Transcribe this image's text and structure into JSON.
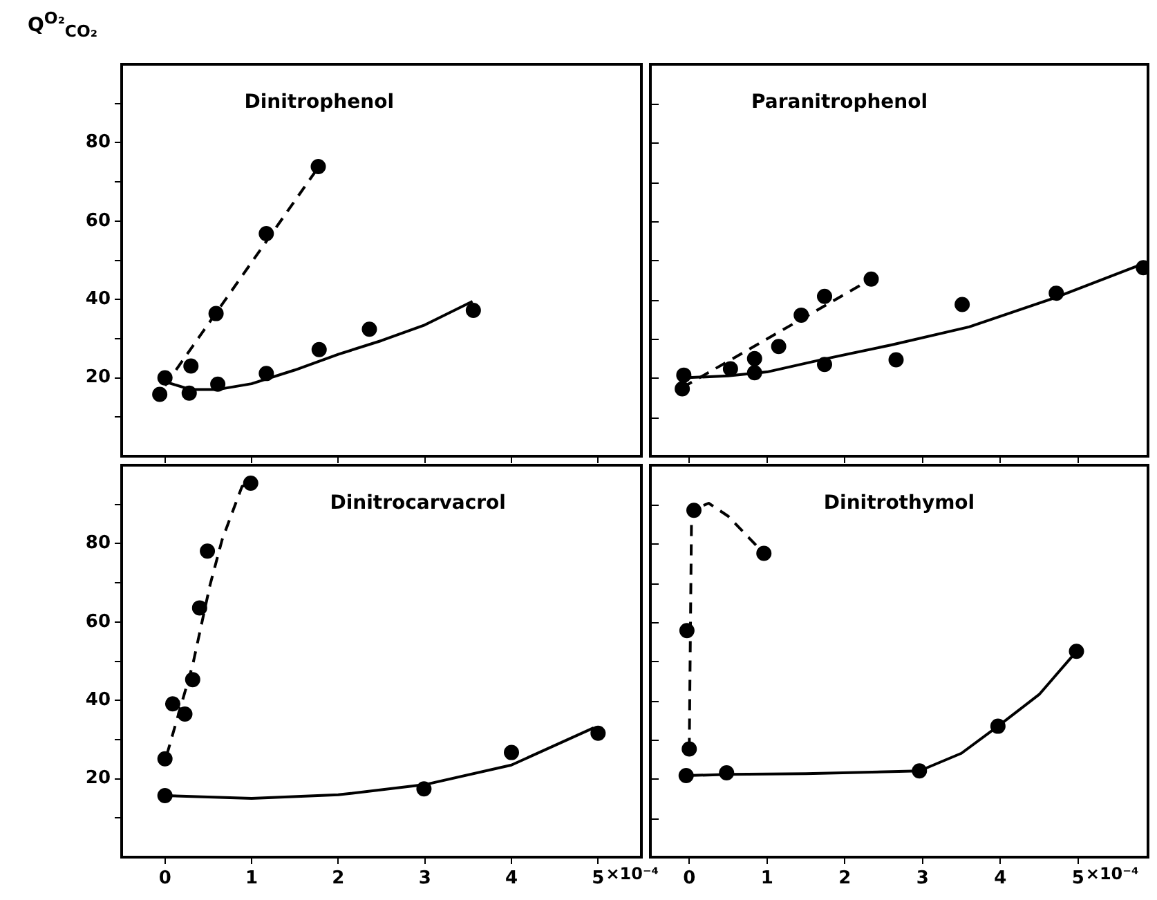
{
  "chart_data": [
    {
      "type": "scatter",
      "title": "Dinitrophenol",
      "ylabel": "Q$^{O₂}$$_{CO₂}$",
      "xlim": [
        -0.5,
        5.5
      ],
      "ylim": [
        0,
        100
      ],
      "xticks": [
        0,
        1,
        2,
        3,
        4,
        5
      ],
      "yticks": [
        {
          "value": 10,
          "label": null
        },
        20,
        {
          "value": 30,
          "label": null
        },
        40,
        {
          "value": 50,
          "label": null
        },
        60,
        {
          "value": 70,
          "label": null
        },
        80,
        {
          "value": 90,
          "label": null
        }
      ],
      "tick_labels": "y",
      "series": [
        {
          "type": "scatter",
          "marker": "circle",
          "color": "#000000",
          "x": [
            -0.06,
            0.28,
            0.61,
            1.17,
            1.78,
            2.36,
            3.56
          ],
          "values": [
            15.8,
            16.1,
            18.4,
            21.1,
            27.2,
            32.4,
            37.2
          ]
        },
        {
          "type": "scatter",
          "marker": "circle",
          "color": "#000000",
          "x": [
            0,
            0.3,
            0.59,
            1.17,
            1.77
          ],
          "values": [
            20,
            23,
            36.4,
            56.8,
            73.9
          ]
        },
        {
          "type": "line",
          "marker": "none",
          "line_style": "solid",
          "color": "#000000",
          "x": [
            0,
            0.3,
            0.6,
            1,
            1.5,
            2,
            2.5,
            3,
            3.55
          ],
          "values": [
            19,
            17,
            17,
            18.5,
            22,
            26,
            29.5,
            33.5,
            39.5
          ]
        },
        {
          "type": "line",
          "marker": "none",
          "line_style": "dashed",
          "color": "#000000",
          "x": [
            0,
            1.78
          ],
          "values": [
            18,
            74
          ]
        }
      ]
    },
    {
      "type": "scatter",
      "title": "Paranitrophenol",
      "xlim": [
        -0.5,
        5.9
      ],
      "ylim": [
        0,
        100
      ],
      "xticks": [
        0,
        1,
        2,
        3,
        4,
        5
      ],
      "yticks": [
        {
          "value": 10,
          "label": null
        },
        20,
        {
          "value": 30,
          "label": null
        },
        40,
        {
          "value": 50,
          "label": null
        },
        60,
        {
          "value": 70,
          "label": null
        },
        80,
        {
          "value": 90,
          "label": null
        }
      ],
      "tick_labels": false,
      "series": [
        {
          "type": "scatter",
          "marker": "circle",
          "color": "#000000",
          "x": [
            -0.07,
            0.84,
            1.74,
            2.66,
            3.51,
            4.72,
            5.84
          ],
          "values": [
            20.7,
            21.3,
            23.4,
            24.6,
            38.7,
            41.6,
            48.1
          ]
        },
        {
          "type": "scatter",
          "marker": "circle",
          "color": "#000000",
          "x": [
            -0.09,
            0.53,
            0.84,
            1.15,
            1.44,
            1.74,
            2.34
          ],
          "values": [
            17.2,
            22.3,
            24.9,
            28,
            36,
            40.8,
            45.2
          ]
        },
        {
          "type": "line",
          "marker": "none",
          "line_style": "solid",
          "color": "#000000",
          "x": [
            -0.07,
            0.5,
            1,
            1.74,
            2.6,
            3.6,
            4.7,
            5.9
          ],
          "values": [
            20,
            20.5,
            21.5,
            24.8,
            28.4,
            33,
            40.4,
            49.6
          ]
        },
        {
          "type": "line",
          "marker": "none",
          "line_style": "dashed",
          "color": "#000000",
          "x": [
            -0.09,
            2.34
          ],
          "values": [
            17.5,
            45.2
          ]
        }
      ]
    },
    {
      "type": "scatter",
      "title": "Dinitrocarvacrol",
      "xlabel": "×10⁻⁴",
      "xlim": [
        -0.5,
        5.5
      ],
      "ylim": [
        0,
        100
      ],
      "xticks": [
        0,
        1,
        2,
        3,
        4,
        5
      ],
      "yticks": [
        {
          "value": 10,
          "label": null
        },
        20,
        {
          "value": 30,
          "label": null
        },
        40,
        {
          "value": 50,
          "label": null
        },
        60,
        {
          "value": 70,
          "label": null
        },
        80,
        {
          "value": 90,
          "label": null
        }
      ],
      "series": [
        {
          "type": "scatter",
          "marker": "circle",
          "color": "#000000",
          "x": [
            0,
            2.99,
            4,
            5
          ],
          "values": [
            15.7,
            17.4,
            26.7,
            31.6
          ]
        },
        {
          "type": "scatter",
          "marker": "circle",
          "color": "#000000",
          "x": [
            0,
            0.09,
            0.23,
            0.32,
            0.4,
            0.49,
            0.99
          ],
          "values": [
            25.1,
            39.1,
            36.5,
            45.3,
            63.6,
            78.1,
            95.4
          ]
        },
        {
          "type": "line",
          "marker": "none",
          "line_style": "solid",
          "color": "#000000",
          "x": [
            0,
            1,
            2,
            3,
            4,
            4.95
          ],
          "values": [
            15.7,
            15,
            15.9,
            18.5,
            23.5,
            33
          ]
        },
        {
          "type": "line",
          "marker": "none",
          "line_style": "dashed",
          "color": "#000000",
          "x": [
            0.02,
            0.32,
            0.52,
            0.66,
            0.89,
            1
          ],
          "values": [
            26,
            49,
            69.4,
            81,
            94.6,
            95.4
          ]
        }
      ]
    },
    {
      "type": "scatter",
      "title": "Dinitrothymol",
      "xlabel": "×10⁻⁴",
      "xlim": [
        -0.5,
        5.9
      ],
      "ylim": [
        0,
        100
      ],
      "xticks": [
        0,
        1,
        2,
        3,
        4,
        5
      ],
      "yticks": [
        {
          "value": 10,
          "label": null
        },
        20,
        {
          "value": 30,
          "label": null
        },
        40,
        {
          "value": 50,
          "label": null
        },
        60,
        {
          "value": 70,
          "label": null
        },
        80,
        {
          "value": 90,
          "label": null
        }
      ],
      "tick_labels": "x",
      "series": [
        {
          "type": "scatter",
          "marker": "circle",
          "color": "#000000",
          "x": [
            -0.04,
            0.48,
            2.96,
            3.97,
            4.98
          ],
          "values": [
            20.8,
            21.5,
            22,
            33.4,
            52.5
          ]
        },
        {
          "type": "scatter",
          "marker": "circle",
          "color": "#000000",
          "x": [
            0,
            -0.03,
            0.06,
            0.96
          ],
          "values": [
            27.6,
            57.8,
            88.5,
            77.5
          ]
        },
        {
          "type": "line",
          "marker": "none",
          "line_style": "solid",
          "color": "#000000",
          "x": [
            -0.04,
            0.5,
            1.5,
            2.96,
            3.5,
            3.97,
            4.5,
            4.98
          ],
          "values": [
            20.8,
            21.1,
            21.3,
            22,
            26.5,
            33.4,
            41.5,
            52.5
          ]
        },
        {
          "type": "line",
          "marker": "none",
          "line_style": "dashed",
          "color": "#000000",
          "x": [
            0,
            0.03,
            0.25,
            0.5,
            0.96
          ],
          "values": [
            27.6,
            88.5,
            90.3,
            87,
            77.5
          ]
        }
      ]
    }
  ]
}
